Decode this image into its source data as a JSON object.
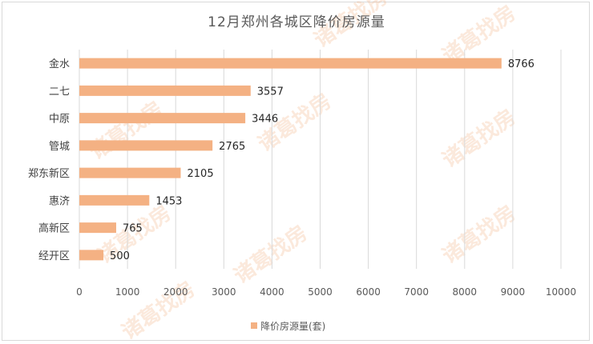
{
  "chart_data": {
    "type": "bar",
    "orientation": "horizontal",
    "title": "12月郑州各城区降价房源量",
    "categories": [
      "金水",
      "二七",
      "中原",
      "管城",
      "郑东新区",
      "惠济",
      "高新区",
      "经开区"
    ],
    "series": [
      {
        "name": "降价房源量(套)",
        "values": [
          8766,
          3557,
          3446,
          2765,
          2105,
          1453,
          765,
          500
        ]
      }
    ],
    "xlim": [
      0,
      10000
    ],
    "x_ticks": [
      0,
      1000,
      2000,
      3000,
      4000,
      5000,
      6000,
      7000,
      8000,
      9000,
      10000
    ],
    "grid": "vertical",
    "legend": "bottom",
    "bar_color": "#f4b183",
    "xlabel": "",
    "ylabel": ""
  },
  "watermark": "诸葛找房"
}
